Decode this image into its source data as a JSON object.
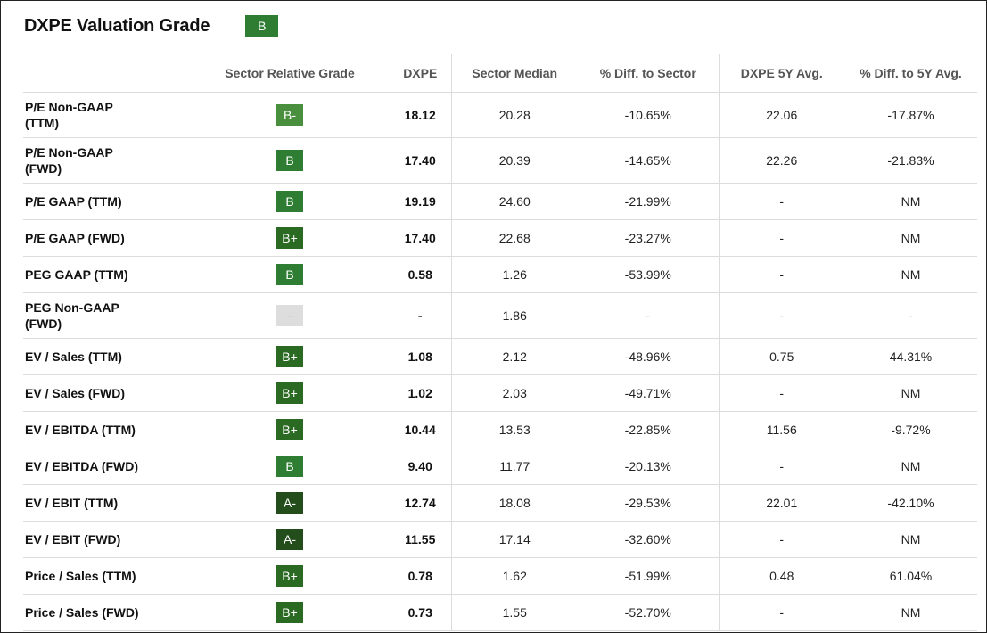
{
  "header": {
    "title": "DXPE Valuation Grade",
    "grade": "B",
    "grade_color": "#2e7d32"
  },
  "grade_colors": {
    "B-": "#4a8f3d",
    "B": "#2e7d32",
    "B+": "#2a6a22",
    "A-": "#234e1c",
    "-": "#dddddd"
  },
  "table": {
    "headers": [
      "",
      "Sector Relative Grade",
      "DXPE",
      "Sector Median",
      "% Diff. to Sector",
      "DXPE 5Y Avg.",
      "% Diff. to 5Y Avg."
    ],
    "rows": [
      {
        "metric": [
          "P/E Non-GAAP",
          "(TTM)"
        ],
        "grade": "B-",
        "dxpe": "18.12",
        "median": "20.28",
        "diff": "-10.65%",
        "avg5": "22.06",
        "diff5": "-17.87%"
      },
      {
        "metric": [
          "P/E Non-GAAP",
          "(FWD)"
        ],
        "grade": "B",
        "dxpe": "17.40",
        "median": "20.39",
        "diff": "-14.65%",
        "avg5": "22.26",
        "diff5": "-21.83%"
      },
      {
        "metric": [
          "P/E GAAP (TTM)"
        ],
        "grade": "B",
        "dxpe": "19.19",
        "median": "24.60",
        "diff": "-21.99%",
        "avg5": "-",
        "diff5": "NM"
      },
      {
        "metric": [
          "P/E GAAP (FWD)"
        ],
        "grade": "B+",
        "dxpe": "17.40",
        "median": "22.68",
        "diff": "-23.27%",
        "avg5": "-",
        "diff5": "NM"
      },
      {
        "metric": [
          "PEG GAAP (TTM)"
        ],
        "grade": "B",
        "dxpe": "0.58",
        "median": "1.26",
        "diff": "-53.99%",
        "avg5": "-",
        "diff5": "NM"
      },
      {
        "metric": [
          "PEG Non-GAAP",
          "(FWD)"
        ],
        "grade": "-",
        "dxpe": "-",
        "median": "1.86",
        "diff": "-",
        "avg5": "-",
        "diff5": "-"
      },
      {
        "metric": [
          "EV / Sales (TTM)"
        ],
        "grade": "B+",
        "dxpe": "1.08",
        "median": "2.12",
        "diff": "-48.96%",
        "avg5": "0.75",
        "diff5": "44.31%"
      },
      {
        "metric": [
          "EV / Sales (FWD)"
        ],
        "grade": "B+",
        "dxpe": "1.02",
        "median": "2.03",
        "diff": "-49.71%",
        "avg5": "-",
        "diff5": "NM"
      },
      {
        "metric": [
          "EV / EBITDA (TTM)"
        ],
        "grade": "B+",
        "dxpe": "10.44",
        "median": "13.53",
        "diff": "-22.85%",
        "avg5": "11.56",
        "diff5": "-9.72%"
      },
      {
        "metric": [
          "EV / EBITDA (FWD)"
        ],
        "grade": "B",
        "dxpe": "9.40",
        "median": "11.77",
        "diff": "-20.13%",
        "avg5": "-",
        "diff5": "NM"
      },
      {
        "metric": [
          "EV / EBIT (TTM)"
        ],
        "grade": "A-",
        "dxpe": "12.74",
        "median": "18.08",
        "diff": "-29.53%",
        "avg5": "22.01",
        "diff5": "-42.10%"
      },
      {
        "metric": [
          "EV / EBIT (FWD)"
        ],
        "grade": "A-",
        "dxpe": "11.55",
        "median": "17.14",
        "diff": "-32.60%",
        "avg5": "-",
        "diff5": "NM"
      },
      {
        "metric": [
          "Price / Sales (TTM)"
        ],
        "grade": "B+",
        "dxpe": "0.78",
        "median": "1.62",
        "diff": "-51.99%",
        "avg5": "0.48",
        "diff5": "61.04%"
      },
      {
        "metric": [
          "Price / Sales (FWD)"
        ],
        "grade": "B+",
        "dxpe": "0.73",
        "median": "1.55",
        "diff": "-52.70%",
        "avg5": "-",
        "diff5": "NM"
      }
    ]
  }
}
